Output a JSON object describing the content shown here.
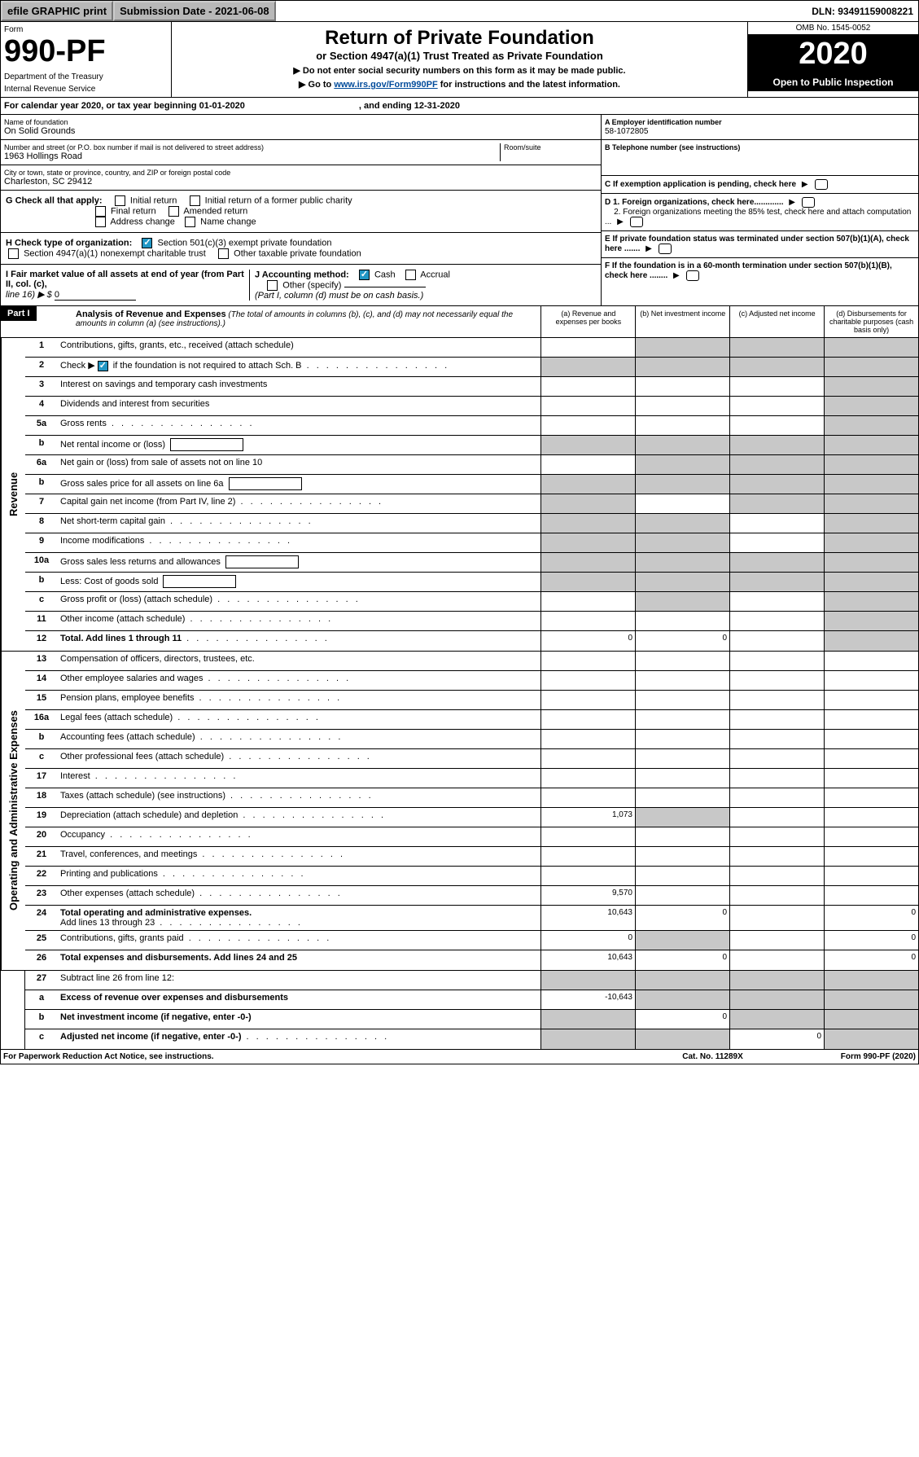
{
  "topbar": {
    "efile": "efile GRAPHIC print",
    "subdate": "Submission Date - 2021-06-08",
    "dln": "DLN: 93491159008221"
  },
  "header": {
    "form_label": "Form",
    "form_num": "990-PF",
    "dept1": "Department of the Treasury",
    "dept2": "Internal Revenue Service",
    "title": "Return of Private Foundation",
    "subtitle": "or Section 4947(a)(1) Trust Treated as Private Foundation",
    "instr1": "▶ Do not enter social security numbers on this form as it may be made public.",
    "instr2": "▶ Go to ",
    "instr_link": "www.irs.gov/Form990PF",
    "instr3": " for instructions and the latest information.",
    "omb": "OMB No. 1545-0052",
    "year": "2020",
    "open": "Open to Public Inspection"
  },
  "cal": {
    "text1": "For calendar year 2020, or tax year beginning 01-01-2020",
    "text2": ", and ending 12-31-2020"
  },
  "info": {
    "name_label": "Name of foundation",
    "name": "On Solid Grounds",
    "addr_label": "Number and street (or P.O. box number if mail is not delivered to street address)",
    "addr": "1963 Hollings Road",
    "room_label": "Room/suite",
    "city_label": "City or town, state or province, country, and ZIP or foreign postal code",
    "city": "Charleston, SC  29412",
    "ein_label": "A Employer identification number",
    "ein": "58-1072805",
    "tel_label": "B Telephone number (see instructions)",
    "c_label": "C If exemption application is pending, check here",
    "d1": "D 1. Foreign organizations, check here.............",
    "d2": "2. Foreign organizations meeting the 85% test, check here and attach computation ...",
    "e_label": "E  If private foundation status was terminated under section 507(b)(1)(A), check here .......",
    "f_label": "F  If the foundation is in a 60-month termination under section 507(b)(1)(B), check here ........"
  },
  "g": {
    "label": "G Check all that apply:",
    "o1": "Initial return",
    "o2": "Initial return of a former public charity",
    "o3": "Final return",
    "o4": "Amended return",
    "o5": "Address change",
    "o6": "Name change"
  },
  "h": {
    "label": "H Check type of organization:",
    "o1": "Section 501(c)(3) exempt private foundation",
    "o2": "Section 4947(a)(1) nonexempt charitable trust",
    "o3": "Other taxable private foundation"
  },
  "i": {
    "label": "I Fair market value of all assets at end of year (from Part II, col. (c),",
    "line": "line 16) ▶ $ ",
    "val": "0"
  },
  "j": {
    "label": "J Accounting method:",
    "o1": "Cash",
    "o2": "Accrual",
    "o3": "Other (specify)",
    "note": "(Part I, column (d) must be on cash basis.)"
  },
  "part1": {
    "label": "Part I",
    "title": "Analysis of Revenue and Expenses",
    "note": "(The total of amounts in columns (b), (c), and (d) may not necessarily equal the amounts in column (a) (see instructions).)",
    "colA": "(a)    Revenue and expenses per books",
    "colB": "(b)   Net investment income",
    "colC": "(c)   Adjusted net income",
    "colD": "(d)   Disbursements for charitable purposes (cash basis only)"
  },
  "sides": {
    "rev": "Revenue",
    "exp": "Operating and Administrative Expenses"
  },
  "rows": {
    "r1": {
      "n": "1",
      "d": "Contributions, gifts, grants, etc., received (attach schedule)"
    },
    "r2": {
      "n": "2",
      "d": "Check ▶",
      "d2": " if the foundation is not required to attach Sch. B"
    },
    "r3": {
      "n": "3",
      "d": "Interest on savings and temporary cash investments"
    },
    "r4": {
      "n": "4",
      "d": "Dividends and interest from securities"
    },
    "r5a": {
      "n": "5a",
      "d": "Gross rents"
    },
    "r5b": {
      "n": "b",
      "d": "Net rental income or (loss)"
    },
    "r6a": {
      "n": "6a",
      "d": "Net gain or (loss) from sale of assets not on line 10"
    },
    "r6b": {
      "n": "b",
      "d": "Gross sales price for all assets on line 6a"
    },
    "r7": {
      "n": "7",
      "d": "Capital gain net income (from Part IV, line 2)"
    },
    "r8": {
      "n": "8",
      "d": "Net short-term capital gain"
    },
    "r9": {
      "n": "9",
      "d": "Income modifications"
    },
    "r10a": {
      "n": "10a",
      "d": "Gross sales less returns and allowances"
    },
    "r10b": {
      "n": "b",
      "d": "Less: Cost of goods sold"
    },
    "r10c": {
      "n": "c",
      "d": "Gross profit or (loss) (attach schedule)"
    },
    "r11": {
      "n": "11",
      "d": "Other income (attach schedule)"
    },
    "r12": {
      "n": "12",
      "d": "Total. Add lines 1 through 11",
      "a": "0",
      "b": "0"
    },
    "r13": {
      "n": "13",
      "d": "Compensation of officers, directors, trustees, etc."
    },
    "r14": {
      "n": "14",
      "d": "Other employee salaries and wages"
    },
    "r15": {
      "n": "15",
      "d": "Pension plans, employee benefits"
    },
    "r16a": {
      "n": "16a",
      "d": "Legal fees (attach schedule)"
    },
    "r16b": {
      "n": "b",
      "d": "Accounting fees (attach schedule)"
    },
    "r16c": {
      "n": "c",
      "d": "Other professional fees (attach schedule)"
    },
    "r17": {
      "n": "17",
      "d": "Interest"
    },
    "r18": {
      "n": "18",
      "d": "Taxes (attach schedule) (see instructions)"
    },
    "r19": {
      "n": "19",
      "d": "Depreciation (attach schedule) and depletion",
      "a": "1,073"
    },
    "r20": {
      "n": "20",
      "d": "Occupancy"
    },
    "r21": {
      "n": "21",
      "d": "Travel, conferences, and meetings"
    },
    "r22": {
      "n": "22",
      "d": "Printing and publications"
    },
    "r23": {
      "n": "23",
      "d": "Other expenses (attach schedule)",
      "a": "9,570"
    },
    "r24": {
      "n": "24",
      "d": "Total operating and administrative expenses.",
      "d2": "Add lines 13 through 23",
      "a": "10,643",
      "b": "0",
      "dd": "0"
    },
    "r25": {
      "n": "25",
      "d": "Contributions, gifts, grants paid",
      "a": "0",
      "dd": "0"
    },
    "r26": {
      "n": "26",
      "d": "Total expenses and disbursements. Add lines 24 and 25",
      "a": "10,643",
      "b": "0",
      "dd": "0"
    },
    "r27": {
      "n": "27",
      "d": "Subtract line 26 from line 12:"
    },
    "r27a": {
      "n": "a",
      "d": "Excess of revenue over expenses and disbursements",
      "a": "-10,643"
    },
    "r27b": {
      "n": "b",
      "d": "Net investment income (if negative, enter -0-)",
      "b": "0"
    },
    "r27c": {
      "n": "c",
      "d": "Adjusted net income (if negative, enter -0-)",
      "c": "0"
    }
  },
  "footer": {
    "left": "For Paperwork Reduction Act Notice, see instructions.",
    "mid": "Cat. No. 11289X",
    "right": "Form 990-PF (2020)"
  }
}
